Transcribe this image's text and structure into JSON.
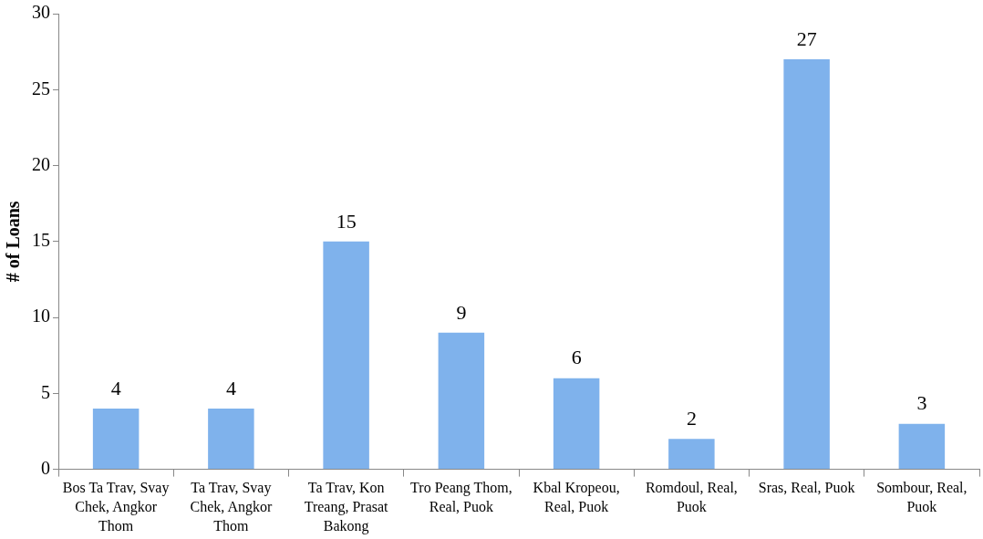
{
  "chart_data": {
    "type": "bar",
    "ylabel": "# of Loans",
    "categories": [
      "Bos Ta Trav, Svay Chek, Angkor Thom",
      "Ta Trav, Svay Chek, Angkor Thom",
      "Ta Trav, Kon Treang, Prasat Bakong",
      "Tro Peang Thom, Real, Puok",
      "Kbal Kropeou, Real, Puok",
      "Romdoul, Real, Puok",
      "Sras, Real, Puok",
      "Sombour, Real, Puok"
    ],
    "values": [
      4,
      4,
      15,
      9,
      6,
      2,
      27,
      3
    ],
    "color": "#7fb2ec",
    "ylim": [
      0,
      30
    ],
    "yticks": [
      0,
      5,
      10,
      15,
      20,
      25,
      30
    ],
    "grid": false,
    "legend": false,
    "data_labels": true
  }
}
